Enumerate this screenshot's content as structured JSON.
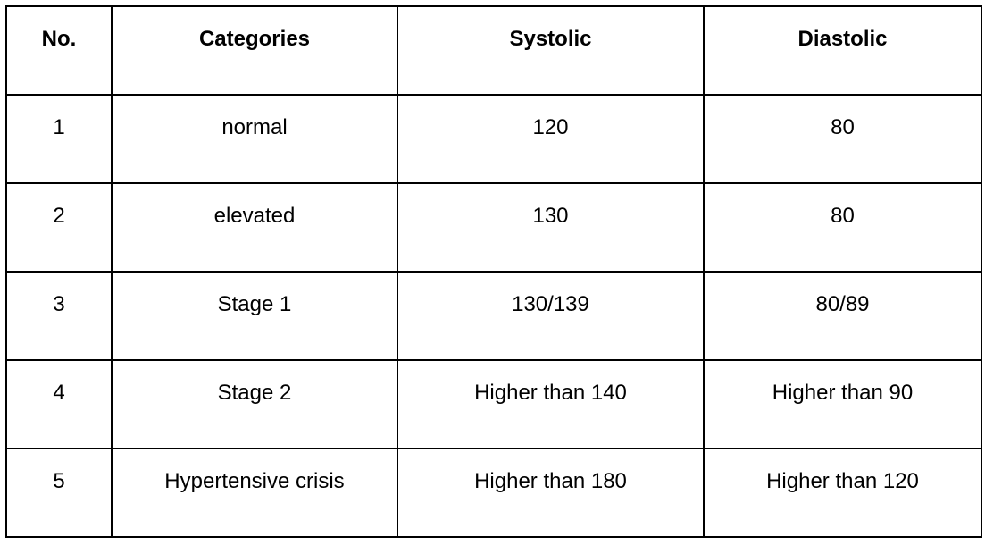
{
  "table": {
    "headers": [
      "No.",
      "Categories",
      "Systolic",
      "Diastolic"
    ],
    "rows": [
      [
        "1",
        "normal",
        "120",
        "80"
      ],
      [
        "2",
        "elevated",
        "130",
        "80"
      ],
      [
        "3",
        "Stage 1",
        "130/139",
        "80/89"
      ],
      [
        "4",
        "Stage 2",
        "Higher than 140",
        "Higher than 90"
      ],
      [
        "5",
        "Hypertensive crisis",
        "Higher than 180",
        "Higher than 120"
      ]
    ]
  }
}
